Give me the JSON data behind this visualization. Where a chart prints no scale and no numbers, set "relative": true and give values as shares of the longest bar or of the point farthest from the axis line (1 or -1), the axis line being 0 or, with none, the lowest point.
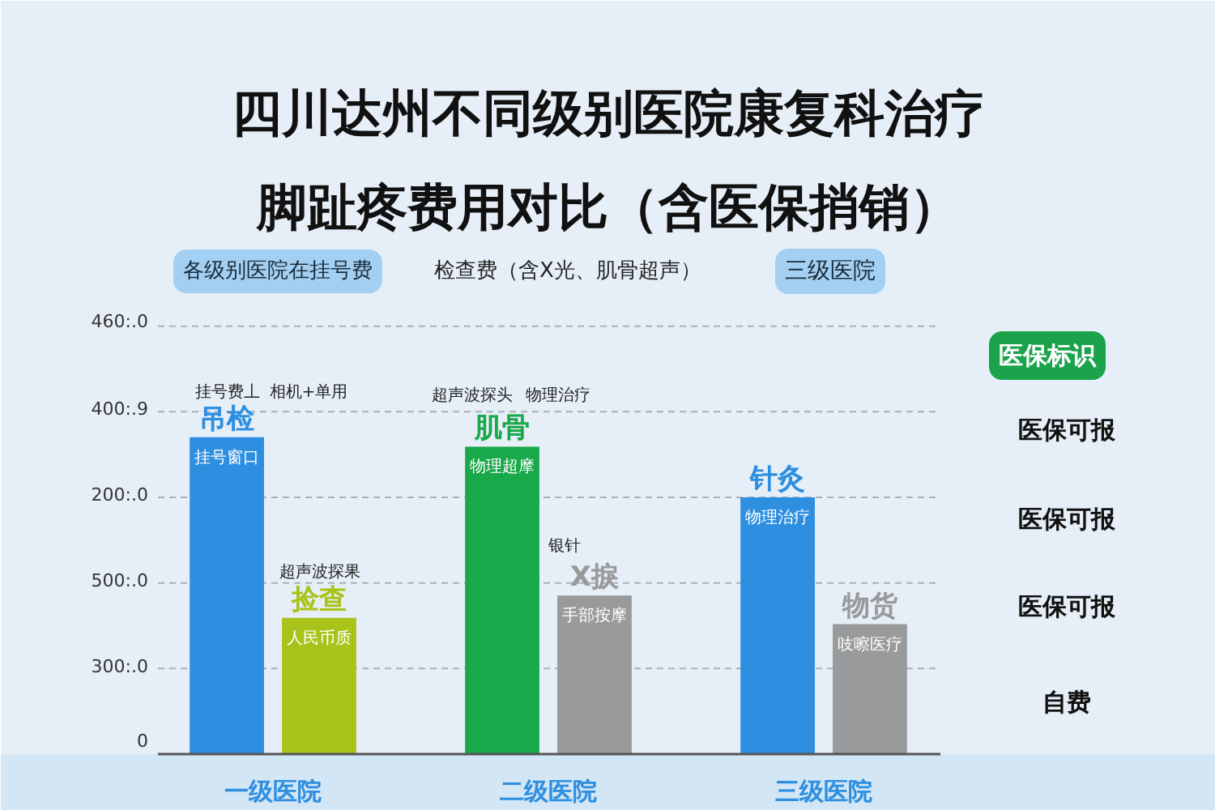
{
  "chart_data": {
    "type": "bar",
    "title": "四川达州不同级别医院康复科治疗脚趾疼费用对比（含医保捎销）",
    "categories": [
      "一级医院",
      "二级医院",
      "三级医院"
    ],
    "relative": true,
    "series": [
      {
        "colors": [
          "#2e8fe0",
          "#19a84a",
          "#2e8fe0"
        ],
        "values": [
          1.0,
          0.97,
          0.81
        ]
      },
      {
        "colors": [
          "#a9c31b",
          "#999a9b",
          "#999a9b"
        ],
        "values": [
          0.43,
          0.5,
          0.41
        ]
      }
    ],
    "ref_lines": [
      {
        "axis": "y",
        "value": 0.27,
        "line_style": "dashed"
      },
      {
        "axis": "y",
        "value": 0.54,
        "line_style": "dashed"
      },
      {
        "axis": "y",
        "value": 0.81,
        "line_style": "dashed"
      },
      {
        "axis": "y",
        "value": 1.08,
        "line_style": "dashed"
      },
      {
        "axis": "y",
        "value": 1.35,
        "line_style": "dashed"
      }
    ],
    "annotations": [
      "各级别医院在挂号费",
      "检查费（含X光、肌骨超声）",
      "三级医院",
      "挂号费丄",
      "相机+单用",
      "超声波探果",
      "超声波探头",
      "物理治疗",
      "银针",
      "医保标识",
      "医保可报",
      "医保可报",
      "医保可报",
      "自费",
      "吊检",
      "挂号窗口",
      "捡查",
      "人民币质",
      "肌骨",
      "物理超摩",
      "X捩",
      "手部按摩",
      "针灸",
      "物理治疗",
      "物货",
      "吱嚓医疗",
      "460:.0",
      "400:.9",
      "200:.0",
      "500:.0",
      "300:.0",
      "0"
    ]
  }
}
